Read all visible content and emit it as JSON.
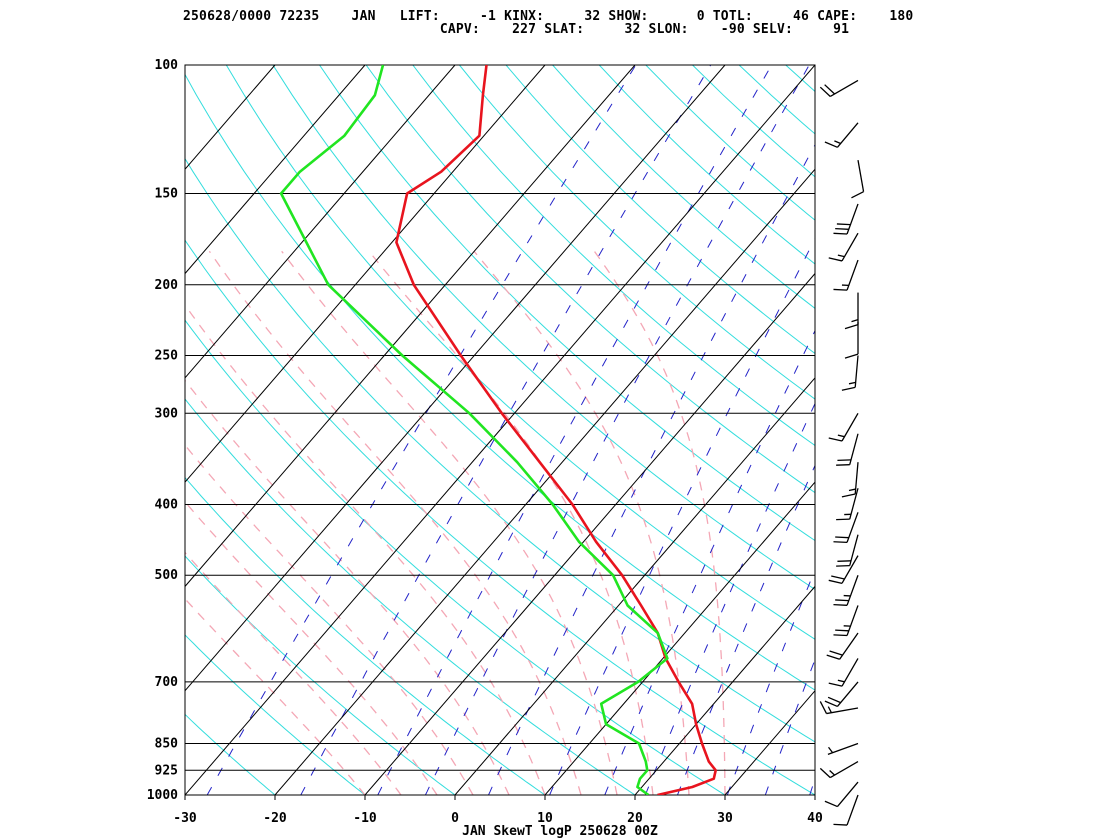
{
  "header": {
    "line1": "250628/0000 72235    JAN   LIFT:     -1 KINX:     32 SHOW:      0 TOTL:     46 CAPE:    180",
    "line2": "                                CAPV:    227 SLAT:     32 SLON:    -90 SELV:     91"
  },
  "chart_data": {
    "type": "line",
    "title": "JAN SkewT logP 250628 00Z",
    "xlabel": "",
    "ylabel": "",
    "x_scale": "skew-T temperature (C)",
    "y_scale": "log pressure (hPa)",
    "xlim": [
      -30,
      40
    ],
    "ylim": [
      1000,
      100
    ],
    "x_ticks": [
      -30,
      -20,
      -10,
      0,
      10,
      20,
      30,
      40
    ],
    "y_ticks": [
      1000,
      925,
      850,
      700,
      500,
      400,
      300,
      250,
      200,
      150,
      100
    ],
    "grid": true,
    "colors": {
      "temperature": "#e8141e",
      "dewpoint": "#21e521",
      "isotherms": "#000000",
      "isobars": "#000000",
      "dry_adiabats": "#33dddd",
      "moist_adiabats": "#f4a7b5",
      "mixing_ratio": "#2424c8",
      "barbs": "#000000"
    },
    "series": [
      {
        "id": "temperature",
        "values": [
          {
            "p": 1000,
            "t": 22.5
          },
          {
            "p": 975,
            "t": 25.6
          },
          {
            "p": 950,
            "t": 27.2
          },
          {
            "p": 925,
            "t": 26.6
          },
          {
            "p": 900,
            "t": 25.0
          },
          {
            "p": 850,
            "t": 22.5
          },
          {
            "p": 800,
            "t": 20.0
          },
          {
            "p": 750,
            "t": 17.6
          },
          {
            "p": 700,
            "t": 14.0
          },
          {
            "p": 650,
            "t": 10.3
          },
          {
            "p": 600,
            "t": 7.0
          },
          {
            "p": 550,
            "t": 2.5
          },
          {
            "p": 500,
            "t": -2.5
          },
          {
            "p": 450,
            "t": -8.6
          },
          {
            "p": 400,
            "t": -14.8
          },
          {
            "p": 350,
            "t": -22.5
          },
          {
            "p": 300,
            "t": -31.4
          },
          {
            "p": 250,
            "t": -41.5
          },
          {
            "p": 200,
            "t": -53.5
          },
          {
            "p": 175,
            "t": -59.5
          },
          {
            "p": 150,
            "t": -63.0
          },
          {
            "p": 140,
            "t": -61.3
          },
          {
            "p": 125,
            "t": -60.5
          },
          {
            "p": 110,
            "t": -64.0
          },
          {
            "p": 100,
            "t": -66.5
          }
        ]
      },
      {
        "id": "dewpoint",
        "values": [
          {
            "p": 1000,
            "t": 21.5
          },
          {
            "p": 975,
            "t": 19.5
          },
          {
            "p": 950,
            "t": 19.0
          },
          {
            "p": 925,
            "t": 19.0
          },
          {
            "p": 900,
            "t": 18.0
          },
          {
            "p": 850,
            "t": 15.5
          },
          {
            "p": 800,
            "t": 10.0
          },
          {
            "p": 750,
            "t": 7.5
          },
          {
            "p": 700,
            "t": 9.5
          },
          {
            "p": 650,
            "t": 10.5
          },
          {
            "p": 600,
            "t": 7.0
          },
          {
            "p": 550,
            "t": 1.0
          },
          {
            "p": 500,
            "t": -3.5
          },
          {
            "p": 450,
            "t": -10.5
          },
          {
            "p": 400,
            "t": -17.0
          },
          {
            "p": 350,
            "t": -25.0
          },
          {
            "p": 300,
            "t": -35.0
          },
          {
            "p": 250,
            "t": -48.0
          },
          {
            "p": 200,
            "t": -63.0
          },
          {
            "p": 175,
            "t": -69.5
          },
          {
            "p": 150,
            "t": -77.0
          },
          {
            "p": 140,
            "t": -77.0
          },
          {
            "p": 125,
            "t": -75.5
          },
          {
            "p": 110,
            "t": -76.0
          },
          {
            "p": 100,
            "t": -78.0
          }
        ]
      }
    ],
    "wind_barbs": [
      {
        "p": 1000,
        "dir": 200,
        "kt": 10
      },
      {
        "p": 960,
        "dir": 220,
        "kt": 10
      },
      {
        "p": 900,
        "dir": 240,
        "kt": 15
      },
      {
        "p": 850,
        "dir": 250,
        "kt": 5
      },
      {
        "p": 760,
        "dir": 260,
        "kt": 15
      },
      {
        "p": 700,
        "dir": 220,
        "kt": 20
      },
      {
        "p": 650,
        "dir": 210,
        "kt": 15
      },
      {
        "p": 600,
        "dir": 215,
        "kt": 20
      },
      {
        "p": 550,
        "dir": 200,
        "kt": 25
      },
      {
        "p": 500,
        "dir": 200,
        "kt": 25
      },
      {
        "p": 470,
        "dir": 210,
        "kt": 20
      },
      {
        "p": 440,
        "dir": 195,
        "kt": 20
      },
      {
        "p": 410,
        "dir": 200,
        "kt": 20
      },
      {
        "p": 380,
        "dir": 195,
        "kt": 15
      },
      {
        "p": 350,
        "dir": 185,
        "kt": 15
      },
      {
        "p": 320,
        "dir": 195,
        "kt": 20
      },
      {
        "p": 300,
        "dir": 210,
        "kt": 15
      },
      {
        "p": 250,
        "dir": 185,
        "kt": 15
      },
      {
        "p": 225,
        "dir": 180,
        "kt": 10
      },
      {
        "p": 205,
        "dir": 180,
        "kt": 15
      },
      {
        "p": 185,
        "dir": 200,
        "kt": 15
      },
      {
        "p": 170,
        "dir": 210,
        "kt": 15
      },
      {
        "p": 155,
        "dir": 200,
        "kt": 30
      },
      {
        "p": 135,
        "dir": 170,
        "kt": 10
      },
      {
        "p": 120,
        "dir": 220,
        "kt": 15
      },
      {
        "p": 105,
        "dir": 240,
        "kt": 20
      }
    ]
  }
}
